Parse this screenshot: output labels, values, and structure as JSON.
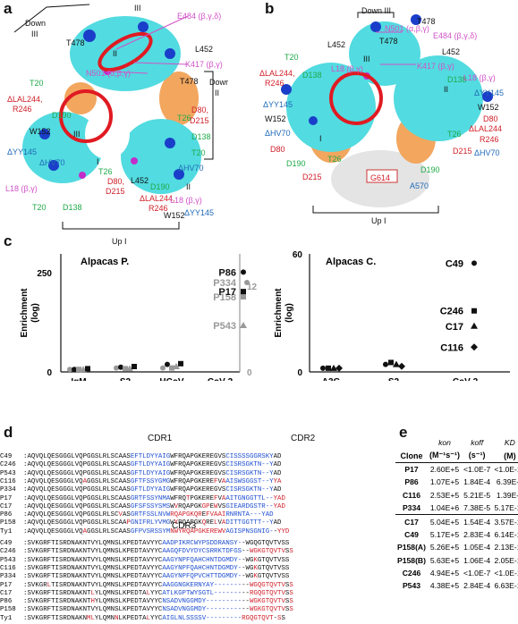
{
  "panels": {
    "a": "a",
    "b": "b",
    "c": "c",
    "d": "d",
    "e": "e"
  },
  "panel_a": {
    "labels": [
      {
        "t": "III",
        "c": "k",
        "x": 150,
        "y": 5
      },
      {
        "t": "Down",
        "c": "k",
        "x": 28,
        "y": 22
      },
      {
        "t": "III",
        "c": "k",
        "x": 35,
        "y": 34
      },
      {
        "t": "E484 (β,γ,δ)",
        "c": "p",
        "x": 198,
        "y": 14
      },
      {
        "t": "T478",
        "c": "k",
        "x": 74,
        "y": 44
      },
      {
        "t": "II",
        "c": "k",
        "x": 126,
        "y": 56
      },
      {
        "t": "L452",
        "c": "k",
        "x": 218,
        "y": 51
      },
      {
        "t": "K417 (β,γ)",
        "c": "p",
        "x": 207,
        "y": 68
      },
      {
        "t": "N501 (α,β,γ)",
        "c": "p",
        "x": 96,
        "y": 78
      },
      {
        "t": "Dowr",
        "c": "k",
        "x": 234,
        "y": 88
      },
      {
        "t": "II",
        "c": "k",
        "x": 240,
        "y": 100
      },
      {
        "t": "T478",
        "c": "k",
        "x": 201,
        "y": 87
      },
      {
        "t": "T20",
        "c": "g",
        "x": 33,
        "y": 89
      },
      {
        "t": "ΔLAL244,",
        "c": "r",
        "x": 8,
        "y": 107
      },
      {
        "t": "R246",
        "c": "r",
        "x": 14,
        "y": 118
      },
      {
        "t": "D190",
        "c": "g",
        "x": 58,
        "y": 125
      },
      {
        "t": "D80,",
        "c": "r",
        "x": 214,
        "y": 119
      },
      {
        "t": "D215",
        "c": "r",
        "x": 212,
        "y": 131
      },
      {
        "t": "T26",
        "c": "g",
        "x": 198,
        "y": 128
      },
      {
        "t": "W152",
        "c": "k",
        "x": 33,
        "y": 143
      },
      {
        "t": "D138",
        "c": "g",
        "x": 214,
        "y": 149
      },
      {
        "t": "III",
        "c": "k",
        "x": 82,
        "y": 146
      },
      {
        "t": "ΔYY145",
        "c": "b",
        "x": 8,
        "y": 166
      },
      {
        "t": "T20",
        "c": "g",
        "x": 214,
        "y": 167
      },
      {
        "t": "ΔHV70",
        "c": "b",
        "x": 44,
        "y": 178
      },
      {
        "t": "I",
        "c": "k",
        "x": 108,
        "y": 177
      },
      {
        "t": "T26",
        "c": "g",
        "x": 110,
        "y": 188
      },
      {
        "t": "D80,",
        "c": "r",
        "x": 120,
        "y": 199
      },
      {
        "t": "D215",
        "c": "r",
        "x": 118,
        "y": 210
      },
      {
        "t": "ΔHV70",
        "c": "b",
        "x": 199,
        "y": 184
      },
      {
        "t": "L452",
        "c": "k",
        "x": 146,
        "y": 198
      },
      {
        "t": "D190",
        "c": "g",
        "x": 168,
        "y": 205
      },
      {
        "t": "II",
        "c": "k",
        "x": 208,
        "y": 205
      },
      {
        "t": "L18 (β,γ)",
        "c": "p",
        "x": 6,
        "y": 207
      },
      {
        "t": "ΔLAL244,",
        "c": "r",
        "x": 156,
        "y": 218
      },
      {
        "t": "R246",
        "c": "r",
        "x": 166,
        "y": 229
      },
      {
        "t": "L18 (β,γ)",
        "c": "p",
        "x": 190,
        "y": 220
      },
      {
        "t": "ΔYY145",
        "c": "b",
        "x": 206,
        "y": 234
      },
      {
        "t": "T20",
        "c": "g",
        "x": 36,
        "y": 228
      },
      {
        "t": "D138",
        "c": "g",
        "x": 70,
        "y": 228
      },
      {
        "t": "W152",
        "c": "k",
        "x": 183,
        "y": 237
      },
      {
        "t": "Up I",
        "c": "k",
        "x": 125,
        "y": 266
      }
    ]
  },
  "panel_b": {
    "labels": [
      {
        "t": "Down III",
        "c": "k",
        "x": 404,
        "y": 8
      },
      {
        "t": "T478",
        "c": "k",
        "x": 466,
        "y": 20
      },
      {
        "t": "N501 (α,β,γ)",
        "c": "p",
        "x": 430,
        "y": 28
      },
      {
        "t": "E484 (β,γ,δ)",
        "c": "p",
        "x": 484,
        "y": 36
      },
      {
        "t": "L452",
        "c": "k",
        "x": 366,
        "y": 46
      },
      {
        "t": "T478",
        "c": "k",
        "x": 424,
        "y": 42
      },
      {
        "t": "L452",
        "c": "k",
        "x": 494,
        "y": 54
      },
      {
        "t": "T20",
        "c": "g",
        "x": 318,
        "y": 60
      },
      {
        "t": "III",
        "c": "k",
        "x": 406,
        "y": 62
      },
      {
        "t": "K417 (β,γ)",
        "c": "p",
        "x": 466,
        "y": 70
      },
      {
        "t": "L18 (β,γ)",
        "c": "p",
        "x": 370,
        "y": 73
      },
      {
        "t": "ΔLAL244,",
        "c": "r",
        "x": 290,
        "y": 78
      },
      {
        "t": "R246",
        "c": "r",
        "x": 296,
        "y": 89
      },
      {
        "t": "D138",
        "c": "g",
        "x": 338,
        "y": 80
      },
      {
        "t": "D138",
        "c": "g",
        "x": 500,
        "y": 85
      },
      {
        "t": "L18 (β,γ)",
        "c": "p",
        "x": 518,
        "y": 83
      },
      {
        "t": "II",
        "c": "k",
        "x": 496,
        "y": 96
      },
      {
        "t": "ΔYY145",
        "c": "b",
        "x": 530,
        "y": 100
      },
      {
        "t": "ΔYY145",
        "c": "b",
        "x": 294,
        "y": 113
      },
      {
        "t": "W152",
        "c": "k",
        "x": 296,
        "y": 129
      },
      {
        "t": "W152",
        "c": "k",
        "x": 534,
        "y": 116
      },
      {
        "t": "D80",
        "c": "r",
        "x": 540,
        "y": 129
      },
      {
        "t": "ΔHV70",
        "c": "b",
        "x": 296,
        "y": 145
      },
      {
        "t": "ΔLAL244",
        "c": "r",
        "x": 524,
        "y": 140
      },
      {
        "t": "R246",
        "c": "r",
        "x": 536,
        "y": 152
      },
      {
        "t": "D80",
        "c": "r",
        "x": 302,
        "y": 163
      },
      {
        "t": "I",
        "c": "k",
        "x": 357,
        "y": 151
      },
      {
        "t": "T26",
        "c": "g",
        "x": 500,
        "y": 146
      },
      {
        "t": "D190",
        "c": "g",
        "x": 320,
        "y": 179
      },
      {
        "t": "T26",
        "c": "g",
        "x": 366,
        "y": 174
      },
      {
        "t": "D215",
        "c": "r",
        "x": 506,
        "y": 165
      },
      {
        "t": "ΔHV70",
        "c": "b",
        "x": 530,
        "y": 167
      },
      {
        "t": "D215",
        "c": "r",
        "x": 338,
        "y": 194
      },
      {
        "t": "D190",
        "c": "g",
        "x": 470,
        "y": 186
      },
      {
        "t": "A570",
        "c": "b",
        "x": 458,
        "y": 204
      },
      {
        "t": "G614",
        "c": "r",
        "x": 414,
        "y": 195
      },
      {
        "t": "Up I",
        "c": "k",
        "x": 415,
        "y": 243
      }
    ]
  },
  "panel_c": {
    "chart_data": [
      {
        "type": "scatter",
        "title": "Alpacas P.",
        "ylabel": "Enrichment\n(log)",
        "categories": [
          "IgM",
          "S2",
          "HCoV",
          "CoV-2"
        ],
        "yticks_left": [
          "0",
          "250"
        ],
        "yticks_right": [
          "0",
          "12"
        ],
        "series": [
          {
            "name": "P334",
            "values": [
              1,
              3,
              3,
              12.5
            ]
          },
          {
            "name": "P86",
            "values": [
              1,
              4,
              8,
              246
            ]
          },
          {
            "name": "P158",
            "values": [
              1,
              2,
              3,
              10.5
            ]
          },
          {
            "name": "P543",
            "values": [
              1,
              2,
              5,
              6.5
            ]
          },
          {
            "name": "P17",
            "values": [
              2,
              5,
              9,
              84
            ]
          }
        ]
      },
      {
        "type": "scatter",
        "title": "Alpacas C.",
        "ylabel": "Enrichment\n(log)",
        "categories": [
          "A3G",
          "S2",
          "CoV-2"
        ],
        "yticks": [
          "0",
          "60"
        ],
        "series": [
          {
            "name": "C49",
            "values": [
              1,
              3,
              57
            ]
          },
          {
            "name": "C246",
            "values": [
              1,
              4,
              32
            ]
          },
          {
            "name": "C17",
            "values": [
              1,
              3,
              24
            ]
          },
          {
            "name": "C116",
            "values": [
              1,
              2,
              13
            ]
          }
        ]
      }
    ]
  },
  "panel_d": {
    "cdr1": "CDR1",
    "cdr2": "CDR2",
    "cdr3": "CDR3",
    "block1": [
      {
        "n": "C49",
        "s": ":AQVQLQESGGGLVQPGGSLRLSCAASEFTLDYYAIGWFRQAPGKEREGVSCISSSSGGRSKYAD"
      },
      {
        "n": "C246",
        "s": ":AQVQLQESGGGLVQPGGSLRLSCAASGFTLDYYAIGWFRQAPGKEREGVSCISRSGKTN--YAD"
      },
      {
        "n": "P543",
        "s": ":AQVQLQESGGGLVQPGGSLRLSCAASGFTLDYYAIGWFRQAPGKEREGVSCISRSGKTN--YAD"
      },
      {
        "n": "C116",
        "s": ":AQVQLQESGGGLVQAGGSLRLSCAASGFTFSSYGMGWFRQAPGKEREFVAAISWSGGST--YYA"
      },
      {
        "n": "P334",
        "s": ":AQVQLQESGGGLVQPGGSLRLSCAASGFTLDYYAIGWFRQAPGKEREGVSCISRSGKTN--YAD"
      },
      {
        "n": "P17",
        "s": ":AQVQLQESGGGLVQPGGSLRLSCAASGRTFSSYNMAWFRQTPGKEREFVAAITGNGGTTL--YAD"
      },
      {
        "n": "C17",
        "s": ":AQVQLQESGGGLVQPGGSLRLSCAASGFSFSSYSMSWVRQAPGKGPEWVSGIEARDGSTR--YAD"
      },
      {
        "n": "P86",
        "s": ":AQVQLQESGGGLVQPGGSLRLSCVASGRTFSSLNVWRQAPGKQREFVAAIRNRNTA---YAD"
      },
      {
        "n": "P158",
        "s": ":AQVQLQESGGGLVQPGGSLRLSCAAPGNIFRLYVMGWYRQAPGKQRELVADITTGGTTT--YAD"
      },
      {
        "n": "Ty1",
        "s": ":AQVQLQESGGGLVQAGGSLRLSCAASGFPVSRSSYMNWYRQAPGKEREWVAGISPNSGNIG--YYD"
      }
    ],
    "block2": [
      {
        "n": "C49",
        "s": ":SVKGRFTISRDNAKNTVYLQMNSLKPEDTAVYYCAADPIKRCWYPSDDRANSY--WGQGTQVTVSS"
      },
      {
        "n": "C246",
        "s": ":SVKGRFTISRDNAKNTVYLQMNSLKPEDTAVYYCAAGQFDVYDYCSRRKTDFGS--WGKGTQVTVSS"
      },
      {
        "n": "P543",
        "s": ":SVKGRFTISRDNAKNTVYLQMNSLKPEDTAVYYCAAGYNPFQAHCHNTDGMDY--WGKGTQVTVSS"
      },
      {
        "n": "C116",
        "s": ":SVKGRFTISRDNAKNTVYLQMNSLKPEDTAVYYCAAGYNPFQAHCHNTDGMDY--WGKGTQVTVSS"
      },
      {
        "n": "P334",
        "s": ":SVKGRFTISRDNAKNTVYLQMNSLKPEDTAVYYCAAGYNPFQPVCHTTDGMDY--WGKGTQVTVSS"
      },
      {
        "n": "P17",
        "s": ":SVKGRLTISRDNAKNTVYLQMNSLKPEDTAVYYCAAGGNGKERNYAY---------WGQGTQVTVSS"
      },
      {
        "n": "C17",
        "s": ":SVKGRFTISRDNAKNTLYLQMNSLKPEDTALYYCATLKGPTWYSGTL---------RGQGTQVTVSS"
      },
      {
        "n": "P86",
        "s": ":SVKGRFTISRDNAKNTHYLQMNSLKPEDTAVYYCNSADVNGGMDY-----------WGKGTQVTVSS"
      },
      {
        "n": "P158",
        "s": ":SVKGRFTISRDNAKNTVYLQMNSLKPEDTAVYYCNSADVNGGMDY-----------WGKGTQVTVSS"
      },
      {
        "n": "Ty1",
        "s": ":SVKGRFTISRDNAKNMLYLQMNNLKPEDTALYYCAIGLNLSSSSV---------RGQGTQVT-SS"
      }
    ]
  },
  "panel_e": {
    "headers": {
      "kon": "kon",
      "koff": "koff",
      "kd": "KD",
      "clone": "Clone",
      "kon_unit": "(M⁻¹s⁻¹)",
      "koff_unit": "(s⁻¹)",
      "kd_unit": "(M)"
    },
    "rows": [
      {
        "clone": "P17",
        "kon": "2.60E+5",
        "koff": "<1.0E-7",
        "kd": "<1.0E-12"
      },
      {
        "clone": "P86",
        "kon": "1.07E+5",
        "koff": "1.84E-4",
        "kd": "6.39E-9"
      },
      {
        "clone": "C116",
        "kon": "2.53E+5",
        "koff": "5.21E-5",
        "kd": "1.39E-9"
      },
      {
        "clone": "P334",
        "kon": "1.04E+6",
        "koff": "7.38E-5",
        "kd": "5.17E-10"
      },
      {
        "clone": "C17",
        "kon": "5.04E+5",
        "koff": "1.54E-4",
        "kd": "3.57E-10"
      },
      {
        "clone": "C49",
        "kon": "5.17E+5",
        "koff": "2.83E-4",
        "kd": "6.14E-10"
      },
      {
        "clone": "P158(A)",
        "kon": "5.26E+5",
        "koff": "1.05E-4",
        "kd": "2.13E-10"
      },
      {
        "clone": "P158(B)",
        "kon": "5.63E+5",
        "koff": "1.06E-4",
        "kd": "2.05E-10"
      },
      {
        "clone": "C246",
        "kon": "4.94E+5",
        "koff": "<1.0E-7",
        "kd": "<1.0E-12"
      },
      {
        "clone": "P543",
        "kon": "4.38E+5",
        "koff": "2.84E-4",
        "kd": "6.63E-10"
      }
    ]
  }
}
